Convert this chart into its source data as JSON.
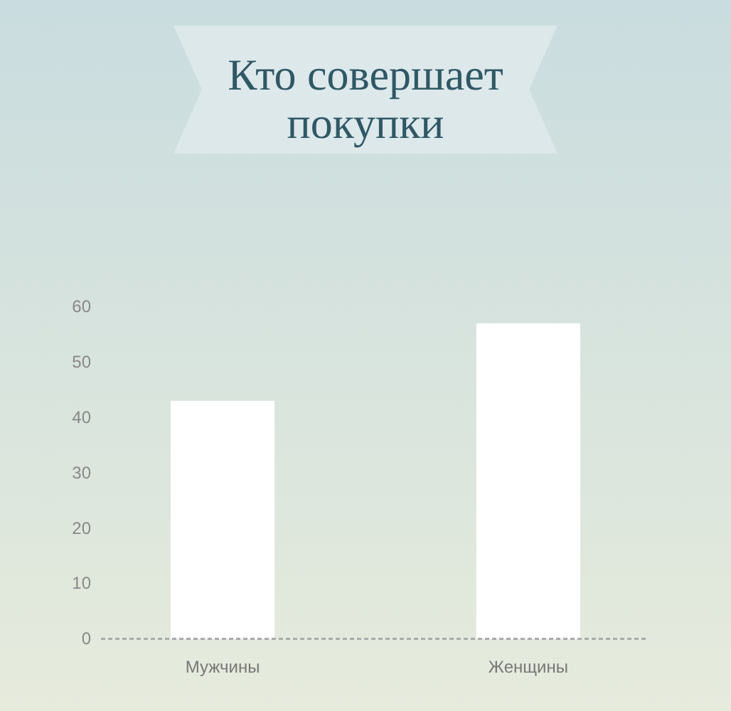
{
  "chart_data": {
    "type": "bar",
    "title": "Кто совершает покупки",
    "categories": [
      "Мужчины",
      "Женщины"
    ],
    "values": [
      43,
      57
    ],
    "color": "#ffffff",
    "ylim": [
      0,
      60
    ],
    "yticks": [
      0,
      10,
      20,
      30,
      40,
      50,
      60
    ],
    "grid": false
  }
}
